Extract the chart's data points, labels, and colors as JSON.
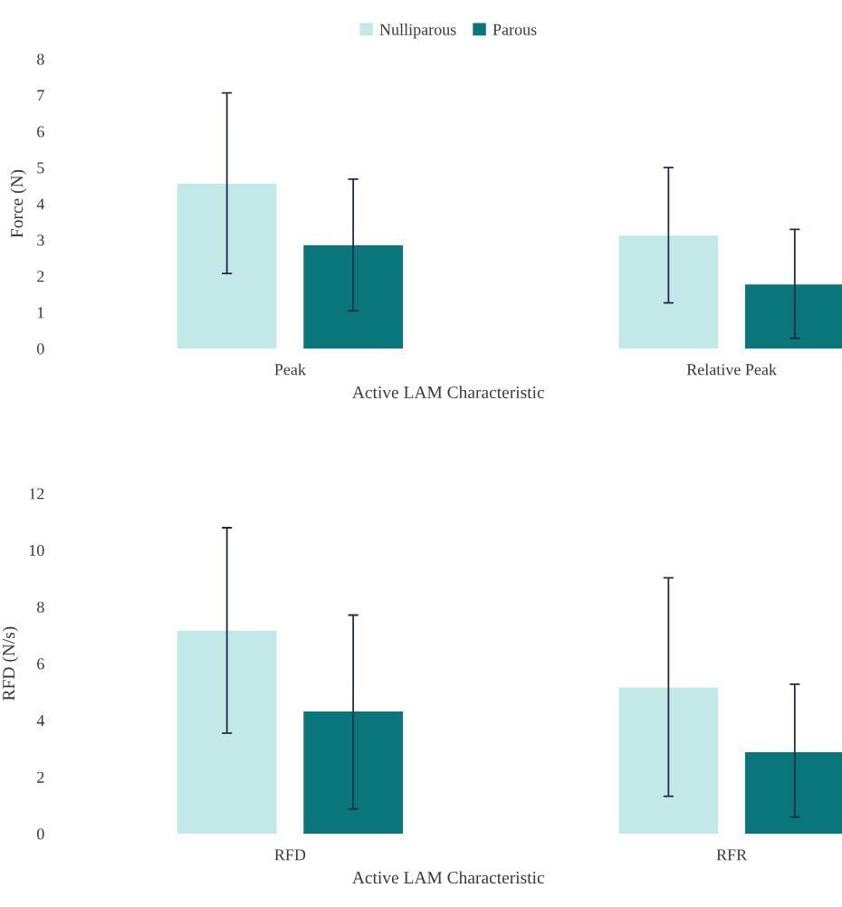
{
  "chart_data": [
    {
      "type": "bar",
      "xlabel": "Active LAM Characteristic",
      "ylabel": "Force (N)",
      "categories": [
        "Peak",
        "Relative Peak"
      ],
      "legend": "top",
      "ylim": [
        0,
        8
      ],
      "yticks": [
        0,
        1,
        2,
        3,
        4,
        5,
        6,
        7,
        8
      ],
      "grid": false,
      "series": [
        {
          "name": "Nulliparous",
          "color": "#c3e8e8",
          "values": [
            4.55,
            3.12
          ],
          "errors": [
            [
              2.07,
              7.06
            ],
            [
              1.26,
              5.0
            ]
          ]
        },
        {
          "name": "Parous",
          "color": "#08767b",
          "values": [
            2.85,
            1.77
          ],
          "errors": [
            [
              1.04,
              4.68
            ],
            [
              0.28,
              3.29
            ]
          ]
        }
      ]
    },
    {
      "type": "bar",
      "xlabel": "Active LAM Characteristic",
      "ylabel": "RFD (N/s)",
      "categories": [
        "RFD",
        "RFR"
      ],
      "ylim": [
        0,
        12
      ],
      "yticks": [
        0,
        2,
        4,
        6,
        8,
        10,
        12
      ],
      "grid": false,
      "series": [
        {
          "color": "#c3e8e8",
          "values": [
            7.16,
            5.16
          ],
          "errors": [
            [
              3.55,
              10.79
            ],
            [
              1.32,
              9.02
            ]
          ]
        },
        {
          "color": "#08767b",
          "values": [
            4.31,
            2.87
          ],
          "errors": [
            [
              0.87,
              7.71
            ],
            [
              0.59,
              5.27
            ]
          ]
        }
      ]
    }
  ]
}
